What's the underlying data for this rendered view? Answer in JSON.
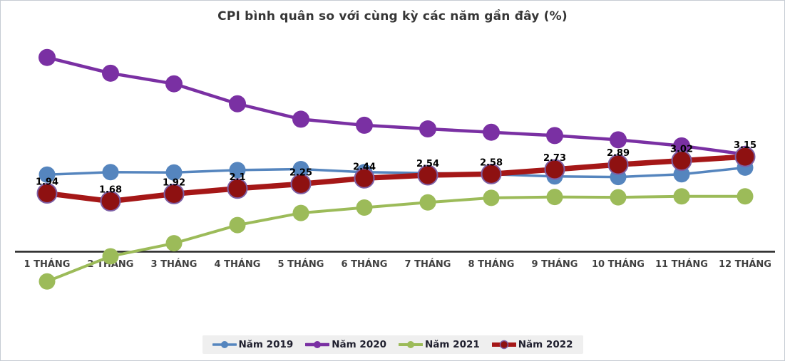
{
  "frame": {
    "background": "#FFFFFF",
    "border_color": "#C6CCD3"
  },
  "chart_data": {
    "type": "line",
    "title": "CPI bình quân so với cùng kỳ các năm gần đây (%)",
    "title_color": "#363636",
    "xlabel": "",
    "ylabel": "",
    "unit": "%",
    "ylim": [
      -1.5,
      7
    ],
    "grid": false,
    "y_axis_visible": false,
    "baseline_value": 0,
    "axis_color": "#262626",
    "axis_label_color": "#3F3F3F",
    "legend_position": "bottom",
    "legend_background": "#EFEFEF",
    "categories": [
      "1 THÁNG",
      "2 THÁNG",
      "3 THÁNG",
      "4 THÁNG",
      "5 THÁNG",
      "6 THÁNG",
      "7 THÁNG",
      "8 THÁNG",
      "9 THÁNG",
      "10 THÁNG",
      "11 THÁNG",
      "12 THÁNG"
    ],
    "series": [
      {
        "name": "Năm 2019",
        "color": "#5585BE",
        "line_width": 3.5,
        "marker_radius": 11.5,
        "values": [
          2.56,
          2.64,
          2.63,
          2.71,
          2.74,
          2.64,
          2.61,
          2.57,
          2.5,
          2.48,
          2.57,
          2.79
        ]
      },
      {
        "name": "Năm 2020",
        "color": "#7A30A3",
        "line_width": 4.5,
        "marker_radius": 12,
        "values": [
          6.43,
          5.91,
          5.56,
          4.9,
          4.39,
          4.19,
          4.07,
          3.96,
          3.85,
          3.71,
          3.51,
          3.23
        ]
      },
      {
        "name": "Năm 2021",
        "color": "#9CBB59",
        "line_width": 4,
        "marker_radius": 11.5,
        "values": [
          -0.97,
          -0.14,
          0.29,
          0.89,
          1.29,
          1.47,
          1.64,
          1.79,
          1.82,
          1.81,
          1.84,
          1.84
        ]
      },
      {
        "name": "Năm 2022",
        "color": "#A51717",
        "marker_fill": "#8E1111",
        "marker_stroke": "#7D5FA5",
        "line_width": 7.5,
        "marker_radius": 13.5,
        "values": [
          1.94,
          1.68,
          1.92,
          2.1,
          2.25,
          2.44,
          2.54,
          2.58,
          2.73,
          2.89,
          3.02,
          3.15
        ],
        "data_labels": [
          "1.94",
          "1.68",
          "1.92",
          "2.1",
          "2.25",
          "2.44",
          "2.54",
          "2.58",
          "2.73",
          "2.89",
          "3.02",
          "3.15"
        ]
      }
    ]
  }
}
